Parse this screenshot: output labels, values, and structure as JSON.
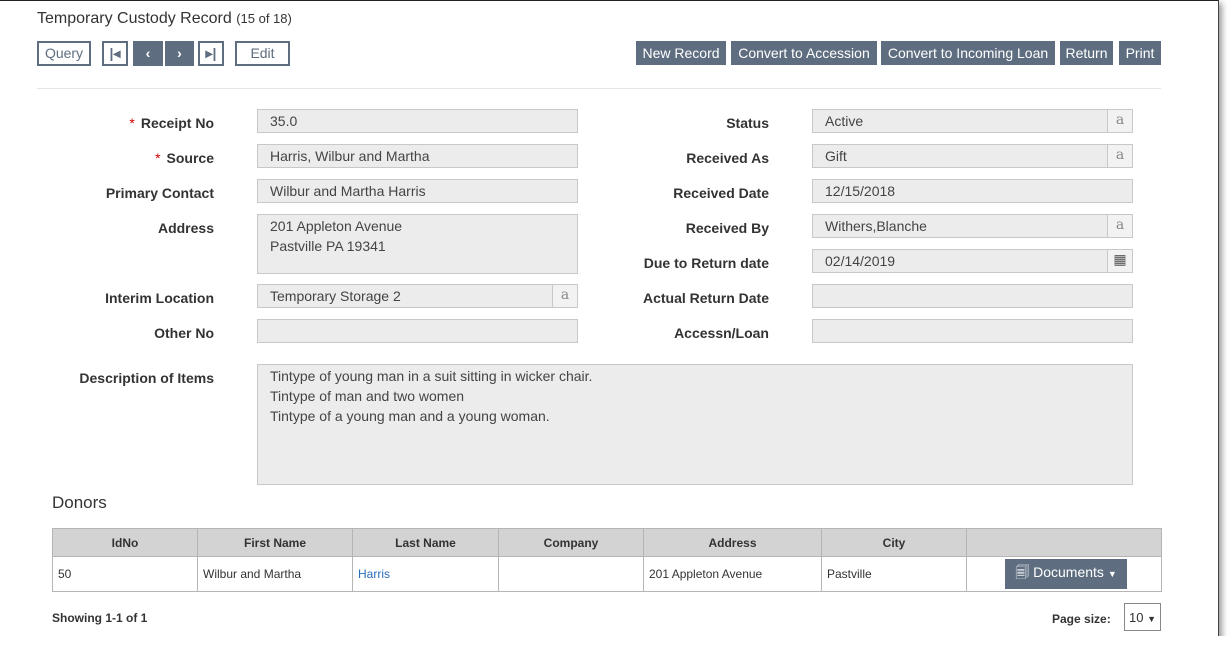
{
  "header": {
    "title": "Temporary Custody Record",
    "count": "(15 of 18)"
  },
  "toolbar": {
    "query": "Query",
    "first": "⏮",
    "prev": "‹",
    "next": "›",
    "last": "⏭",
    "edit": "Edit",
    "new_record": "New Record",
    "convert_accession": "Convert to Accession",
    "convert_loan": "Convert to Incoming Loan",
    "return": "Return",
    "print": "Print"
  },
  "form": {
    "receipt_no": {
      "label": "Receipt No",
      "value": "35.0"
    },
    "source": {
      "label": "Source",
      "value": "Harris, Wilbur and Martha"
    },
    "primary_contact": {
      "label": "Primary Contact",
      "value": "Wilbur and Martha Harris"
    },
    "address": {
      "label": "Address",
      "value": "201 Appleton Avenue\nPastville PA 19341"
    },
    "interim_location": {
      "label": "Interim Location",
      "value": "Temporary Storage 2"
    },
    "other_no": {
      "label": "Other No",
      "value": ""
    },
    "status": {
      "label": "Status",
      "value": "Active"
    },
    "received_as": {
      "label": "Received As",
      "value": "Gift"
    },
    "received_date": {
      "label": "Received Date",
      "value": "12/15/2018"
    },
    "received_by": {
      "label": "Received By",
      "value": "Withers,Blanche"
    },
    "due_return": {
      "label": "Due to Return date",
      "value": "02/14/2019"
    },
    "actual_return": {
      "label": "Actual Return Date",
      "value": ""
    },
    "accessn_loan": {
      "label": "Accessn/Loan",
      "value": ""
    },
    "description": {
      "label": "Description of Items",
      "value": "Tintype of young man in a suit sitting in wicker chair.\nTintype of man and two women\nTintype of a young man and a young woman."
    },
    "required_mark": "*",
    "lookup_glyph": "a"
  },
  "donors": {
    "title": "Donors",
    "columns": [
      "IdNo",
      "First Name",
      "Last Name",
      "Company",
      "Address",
      "City",
      ""
    ],
    "rows": [
      {
        "idno": "50",
        "first": "Wilbur and Martha",
        "last": "Harris",
        "company": "",
        "address": "201 Appleton Avenue",
        "city": "Pastville",
        "action": "Documents"
      }
    ],
    "showing": "Showing 1-1 of 1",
    "page_size_label": "Page size:",
    "page_size": "10"
  }
}
